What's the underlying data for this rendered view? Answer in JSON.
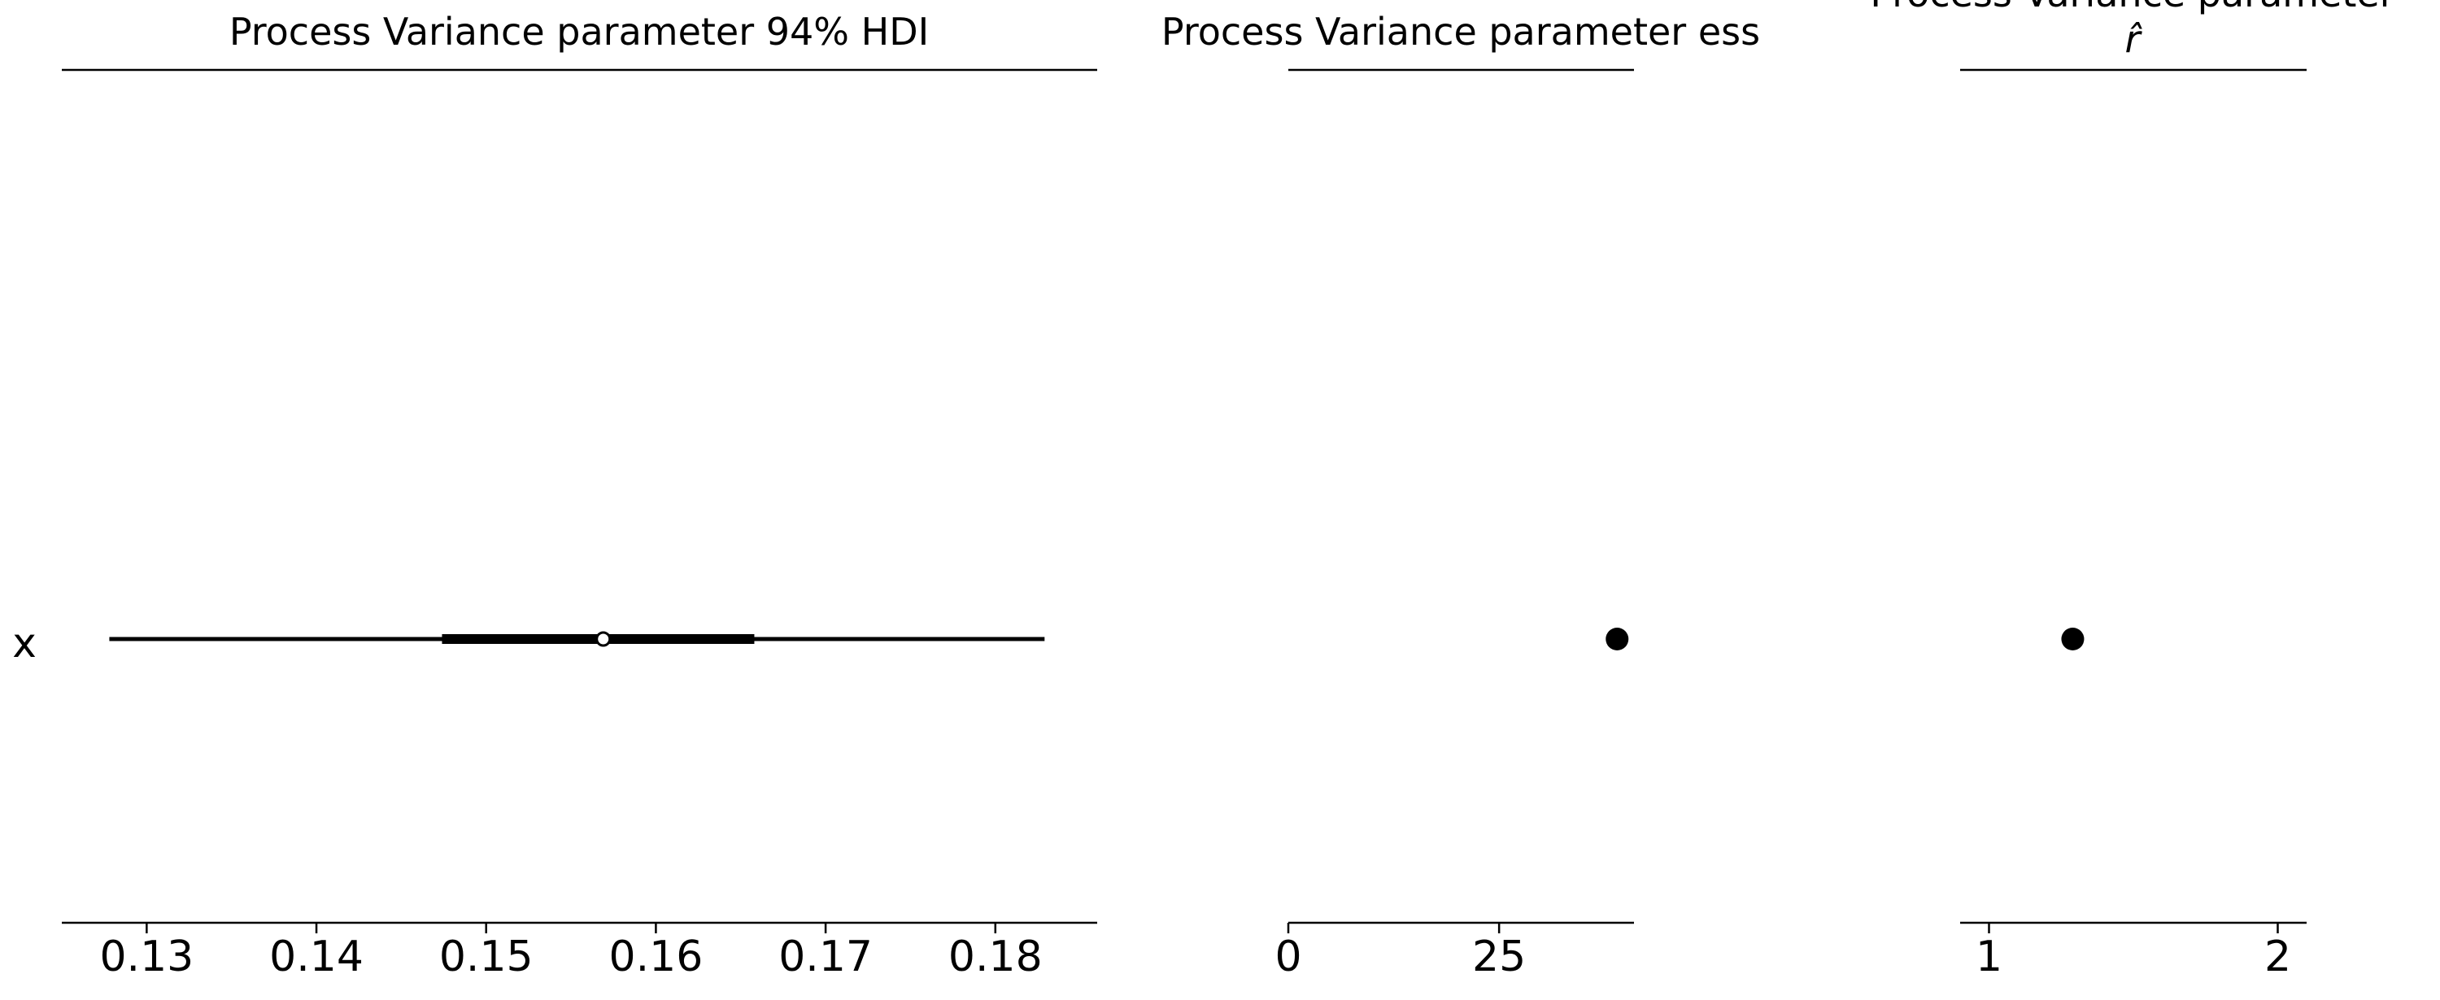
{
  "chart_data": {
    "type": "forest",
    "rows": [
      "x"
    ],
    "panels": [
      {
        "title": "Process Variance parameter 94% HDI",
        "xlim": [
          0.125,
          0.186
        ],
        "ticks": [
          0.13,
          0.14,
          0.15,
          0.16,
          0.17,
          0.18
        ],
        "tick_labels": [
          "0.13",
          "0.14",
          "0.15",
          "0.16",
          "0.17",
          "0.18"
        ],
        "hdi_94": [
          0.1278,
          0.1829
        ],
        "iqr": [
          0.1474,
          0.1658
        ],
        "median": 0.1569
      },
      {
        "title": "Process Variance parameter ess",
        "xlim": [
          0,
          41
        ],
        "ticks": [
          0,
          25
        ],
        "tick_labels": [
          "0",
          "25"
        ],
        "value": 39
      },
      {
        "title": "Process Variance parameter",
        "title_math": "r̂",
        "xlim": [
          0.9,
          2.1
        ],
        "ticks": [
          1,
          2
        ],
        "tick_labels": [
          "1",
          "2"
        ],
        "value": 1.29
      }
    ]
  }
}
